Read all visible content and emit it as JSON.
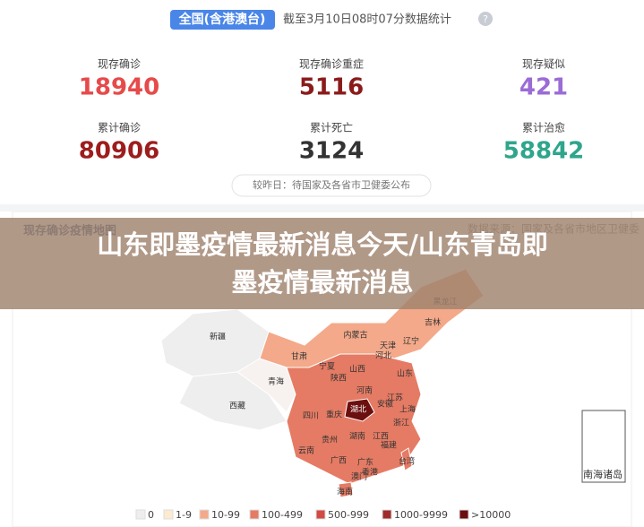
{
  "header": {
    "scope": "全国(含港澳台)",
    "timestamp": "截至3月10日08时07分数据统计",
    "help": "?"
  },
  "stats": [
    {
      "label": "现存确诊",
      "value": 18940,
      "color": "#e64a4a"
    },
    {
      "label": "现存确诊重症",
      "value": 5116,
      "color": "#8b1b1b"
    },
    {
      "label": "现存疑似",
      "value": 421,
      "color": "#9b6bd6"
    },
    {
      "label": "累计确诊",
      "value": 80906,
      "color": "#9d1d1d"
    },
    {
      "label": "累计死亡",
      "value": 3124,
      "color": "#333333"
    },
    {
      "label": "累计治愈",
      "value": 58842,
      "color": "#2fa58c"
    }
  ],
  "note": "较昨日：待国家及各省市卫健委公布",
  "map": {
    "title": "现存确诊疫情地图",
    "source": "数据来源：国家及各省市地区卫健委",
    "provinces": [
      "新疆",
      "西藏",
      "青海",
      "甘肃",
      "内蒙古",
      "黑龙江",
      "吉林",
      "辽宁",
      "宁夏",
      "陕西",
      "山西",
      "河北",
      "天津",
      "山东",
      "河南",
      "湖北",
      "安徽",
      "江苏",
      "上海",
      "四川",
      "重庆",
      "湖南",
      "江西",
      "浙江",
      "贵州",
      "云南",
      "福建",
      "广西",
      "广东",
      "台湾",
      "香港",
      "澳门",
      "海南"
    ],
    "inset": "南海诸岛",
    "legend": [
      {
        "label": "0",
        "color": "#eeeeee"
      },
      {
        "label": "1-9",
        "color": "#fdebcf"
      },
      {
        "label": "10-99",
        "color": "#f3a98a"
      },
      {
        "label": "100-499",
        "color": "#e57b64"
      },
      {
        "label": "500-999",
        "color": "#cf4b43"
      },
      {
        "label": "1000-9999",
        "color": "#a02b2b"
      },
      {
        "label": ">10000",
        "color": "#6b0f0f"
      }
    ]
  },
  "banner": [
    "山东即墨疫情最新消息今天/山东青岛即",
    "墨疫情最新消息"
  ]
}
